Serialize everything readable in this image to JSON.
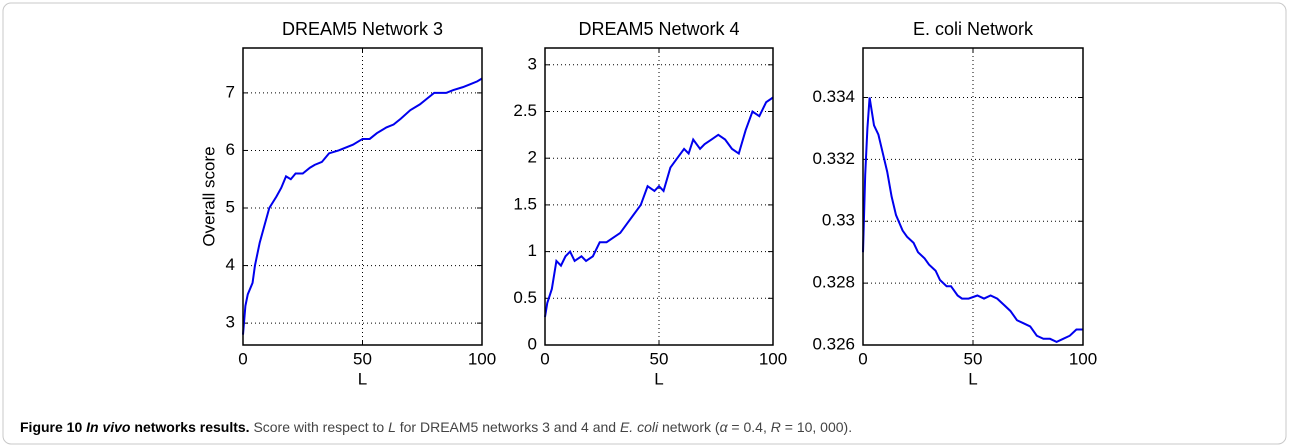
{
  "chart_data": [
    {
      "type": "line",
      "title": "DREAM5 Network 3",
      "xlabel": "L",
      "ylabel": "Overall score",
      "color": "#0000ee",
      "grid": true,
      "xlim": [
        0,
        100
      ],
      "xticks": [
        0,
        50,
        100
      ],
      "ylim": [
        2.62,
        7.78
      ],
      "yticks": [
        3,
        4,
        5,
        6,
        7
      ],
      "x": [
        0,
        1,
        2,
        4,
        5,
        7,
        9,
        11,
        14,
        16,
        18,
        20,
        22,
        25,
        28,
        30,
        33,
        36,
        40,
        43,
        46,
        50,
        53,
        56,
        60,
        63,
        66,
        70,
        74,
        77,
        80,
        85,
        88,
        92,
        95,
        98,
        100
      ],
      "values": [
        2.8,
        3.3,
        3.5,
        3.7,
        4.0,
        4.4,
        4.7,
        5.0,
        5.2,
        5.35,
        5.55,
        5.5,
        5.6,
        5.6,
        5.7,
        5.75,
        5.8,
        5.95,
        6.0,
        6.05,
        6.1,
        6.2,
        6.2,
        6.3,
        6.4,
        6.45,
        6.55,
        6.7,
        6.8,
        6.9,
        7.0,
        7.0,
        7.05,
        7.1,
        7.15,
        7.2,
        7.25
      ]
    },
    {
      "type": "line",
      "title": "DREAM5 Network 4",
      "xlabel": "L",
      "color": "#0000ee",
      "grid": true,
      "xlim": [
        0,
        100
      ],
      "xticks": [
        0,
        50,
        100
      ],
      "ylim": [
        0,
        3.18
      ],
      "yticks": [
        0,
        0.5,
        1,
        1.5,
        2,
        2.5,
        3
      ],
      "x": [
        0,
        1,
        3,
        5,
        7,
        9,
        11,
        13,
        16,
        18,
        21,
        24,
        27,
        30,
        33,
        36,
        39,
        42,
        45,
        48,
        50,
        52,
        55,
        58,
        61,
        63,
        65,
        68,
        70,
        73,
        76,
        79,
        82,
        85,
        88,
        91,
        94,
        97,
        100
      ],
      "values": [
        0.3,
        0.45,
        0.6,
        0.9,
        0.85,
        0.95,
        1.0,
        0.9,
        0.95,
        0.9,
        0.95,
        1.1,
        1.1,
        1.15,
        1.2,
        1.3,
        1.4,
        1.5,
        1.7,
        1.65,
        1.7,
        1.65,
        1.9,
        2.0,
        2.1,
        2.05,
        2.2,
        2.1,
        2.15,
        2.2,
        2.25,
        2.2,
        2.1,
        2.05,
        2.3,
        2.5,
        2.45,
        2.6,
        2.65
      ]
    },
    {
      "type": "line",
      "title": "E. coli Network",
      "xlabel": "L",
      "color": "#0000ee",
      "grid": true,
      "xlim": [
        0,
        100
      ],
      "xticks": [
        0,
        50,
        100
      ],
      "ylim": [
        0.326,
        0.3356
      ],
      "yticks": [
        0.326,
        0.328,
        0.33,
        0.332,
        0.334
      ],
      "x": [
        0,
        1,
        2,
        3,
        5,
        7,
        9,
        11,
        13,
        15,
        18,
        20,
        23,
        25,
        28,
        30,
        33,
        35,
        38,
        40,
        43,
        45,
        48,
        52,
        55,
        58,
        61,
        64,
        67,
        70,
        73,
        76,
        79,
        82,
        85,
        88,
        91,
        94,
        97,
        100
      ],
      "values": [
        0.329,
        0.3315,
        0.333,
        0.334,
        0.3331,
        0.3328,
        0.3322,
        0.3316,
        0.3308,
        0.3302,
        0.3297,
        0.3295,
        0.3293,
        0.329,
        0.3288,
        0.3286,
        0.3284,
        0.3281,
        0.3279,
        0.3279,
        0.3276,
        0.3275,
        0.3275,
        0.3276,
        0.3275,
        0.3276,
        0.3275,
        0.3273,
        0.3271,
        0.3268,
        0.3267,
        0.3266,
        0.3263,
        0.3262,
        0.3262,
        0.3261,
        0.3262,
        0.3263,
        0.3265,
        0.3265
      ]
    }
  ],
  "caption": {
    "label": "Figure 10",
    "title_italic": "In vivo",
    "title_rest": " networks results.",
    "text": [
      "Score with respect to ",
      "L",
      " for DREAM5 networks 3 and 4 and ",
      "E. coli",
      " network (",
      "α",
      " = 0.4, ",
      "R",
      " = 10, 000)."
    ]
  }
}
